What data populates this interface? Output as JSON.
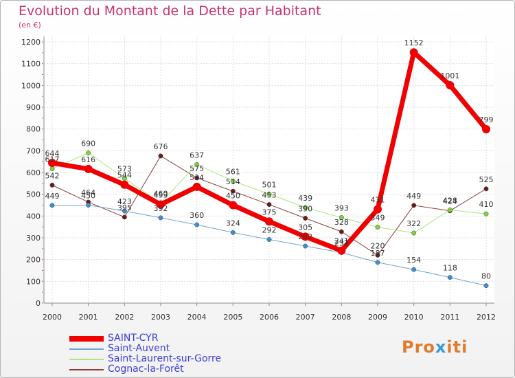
{
  "title": "Evolution du Montant de la Dette par Habitant",
  "unit": "(en €)",
  "logo": {
    "part1": "Pro",
    "part2": "x",
    "part3": "iti"
  },
  "chart_data": {
    "type": "line",
    "x": [
      "2000",
      "2001",
      "2002",
      "2003",
      "2004",
      "2005",
      "2006",
      "2007",
      "2008",
      "2009",
      "2010",
      "2011",
      "2012"
    ],
    "ylim": [
      0,
      1200
    ],
    "yticks": [
      0,
      100,
      200,
      300,
      400,
      500,
      600,
      700,
      800,
      900,
      1000,
      1100,
      1200
    ],
    "grid": true,
    "legend_position": "bottom-left",
    "series": [
      {
        "name": "SAINT-CYR",
        "color": "#f00000",
        "width": 7,
        "marker": 6,
        "values": [
          644,
          616,
          544,
          453,
          534,
          450,
          375,
          305,
          241,
          431,
          1152,
          1001,
          799
        ]
      },
      {
        "name": "Saint-Auvent",
        "color": "#6fa3d0",
        "width": 1,
        "marker": 3.2,
        "markerColor": "#3f8fd6",
        "values": [
          449,
          450,
          423,
          392,
          360,
          324,
          292,
          262,
          232,
          187,
          154,
          118,
          80
        ]
      },
      {
        "name": "Saint-Laurent-sur-Gorre",
        "color": "#a8e67a",
        "width": 1,
        "marker": 3.2,
        "markerColor": "#7bd53c",
        "values": [
          617,
          690,
          573,
          460,
          637,
          561,
          501,
          439,
          393,
          349,
          322,
          428,
          410
        ]
      },
      {
        "name": "Cognac-la-Forêt",
        "color": "#8b3a3a",
        "width": 1,
        "marker": 3.2,
        "markerColor": "#6b1a1a",
        "values": [
          542,
          464,
          395,
          676,
          575,
          514,
          453,
          390,
          328,
          220,
          449,
          424,
          525
        ]
      }
    ]
  }
}
